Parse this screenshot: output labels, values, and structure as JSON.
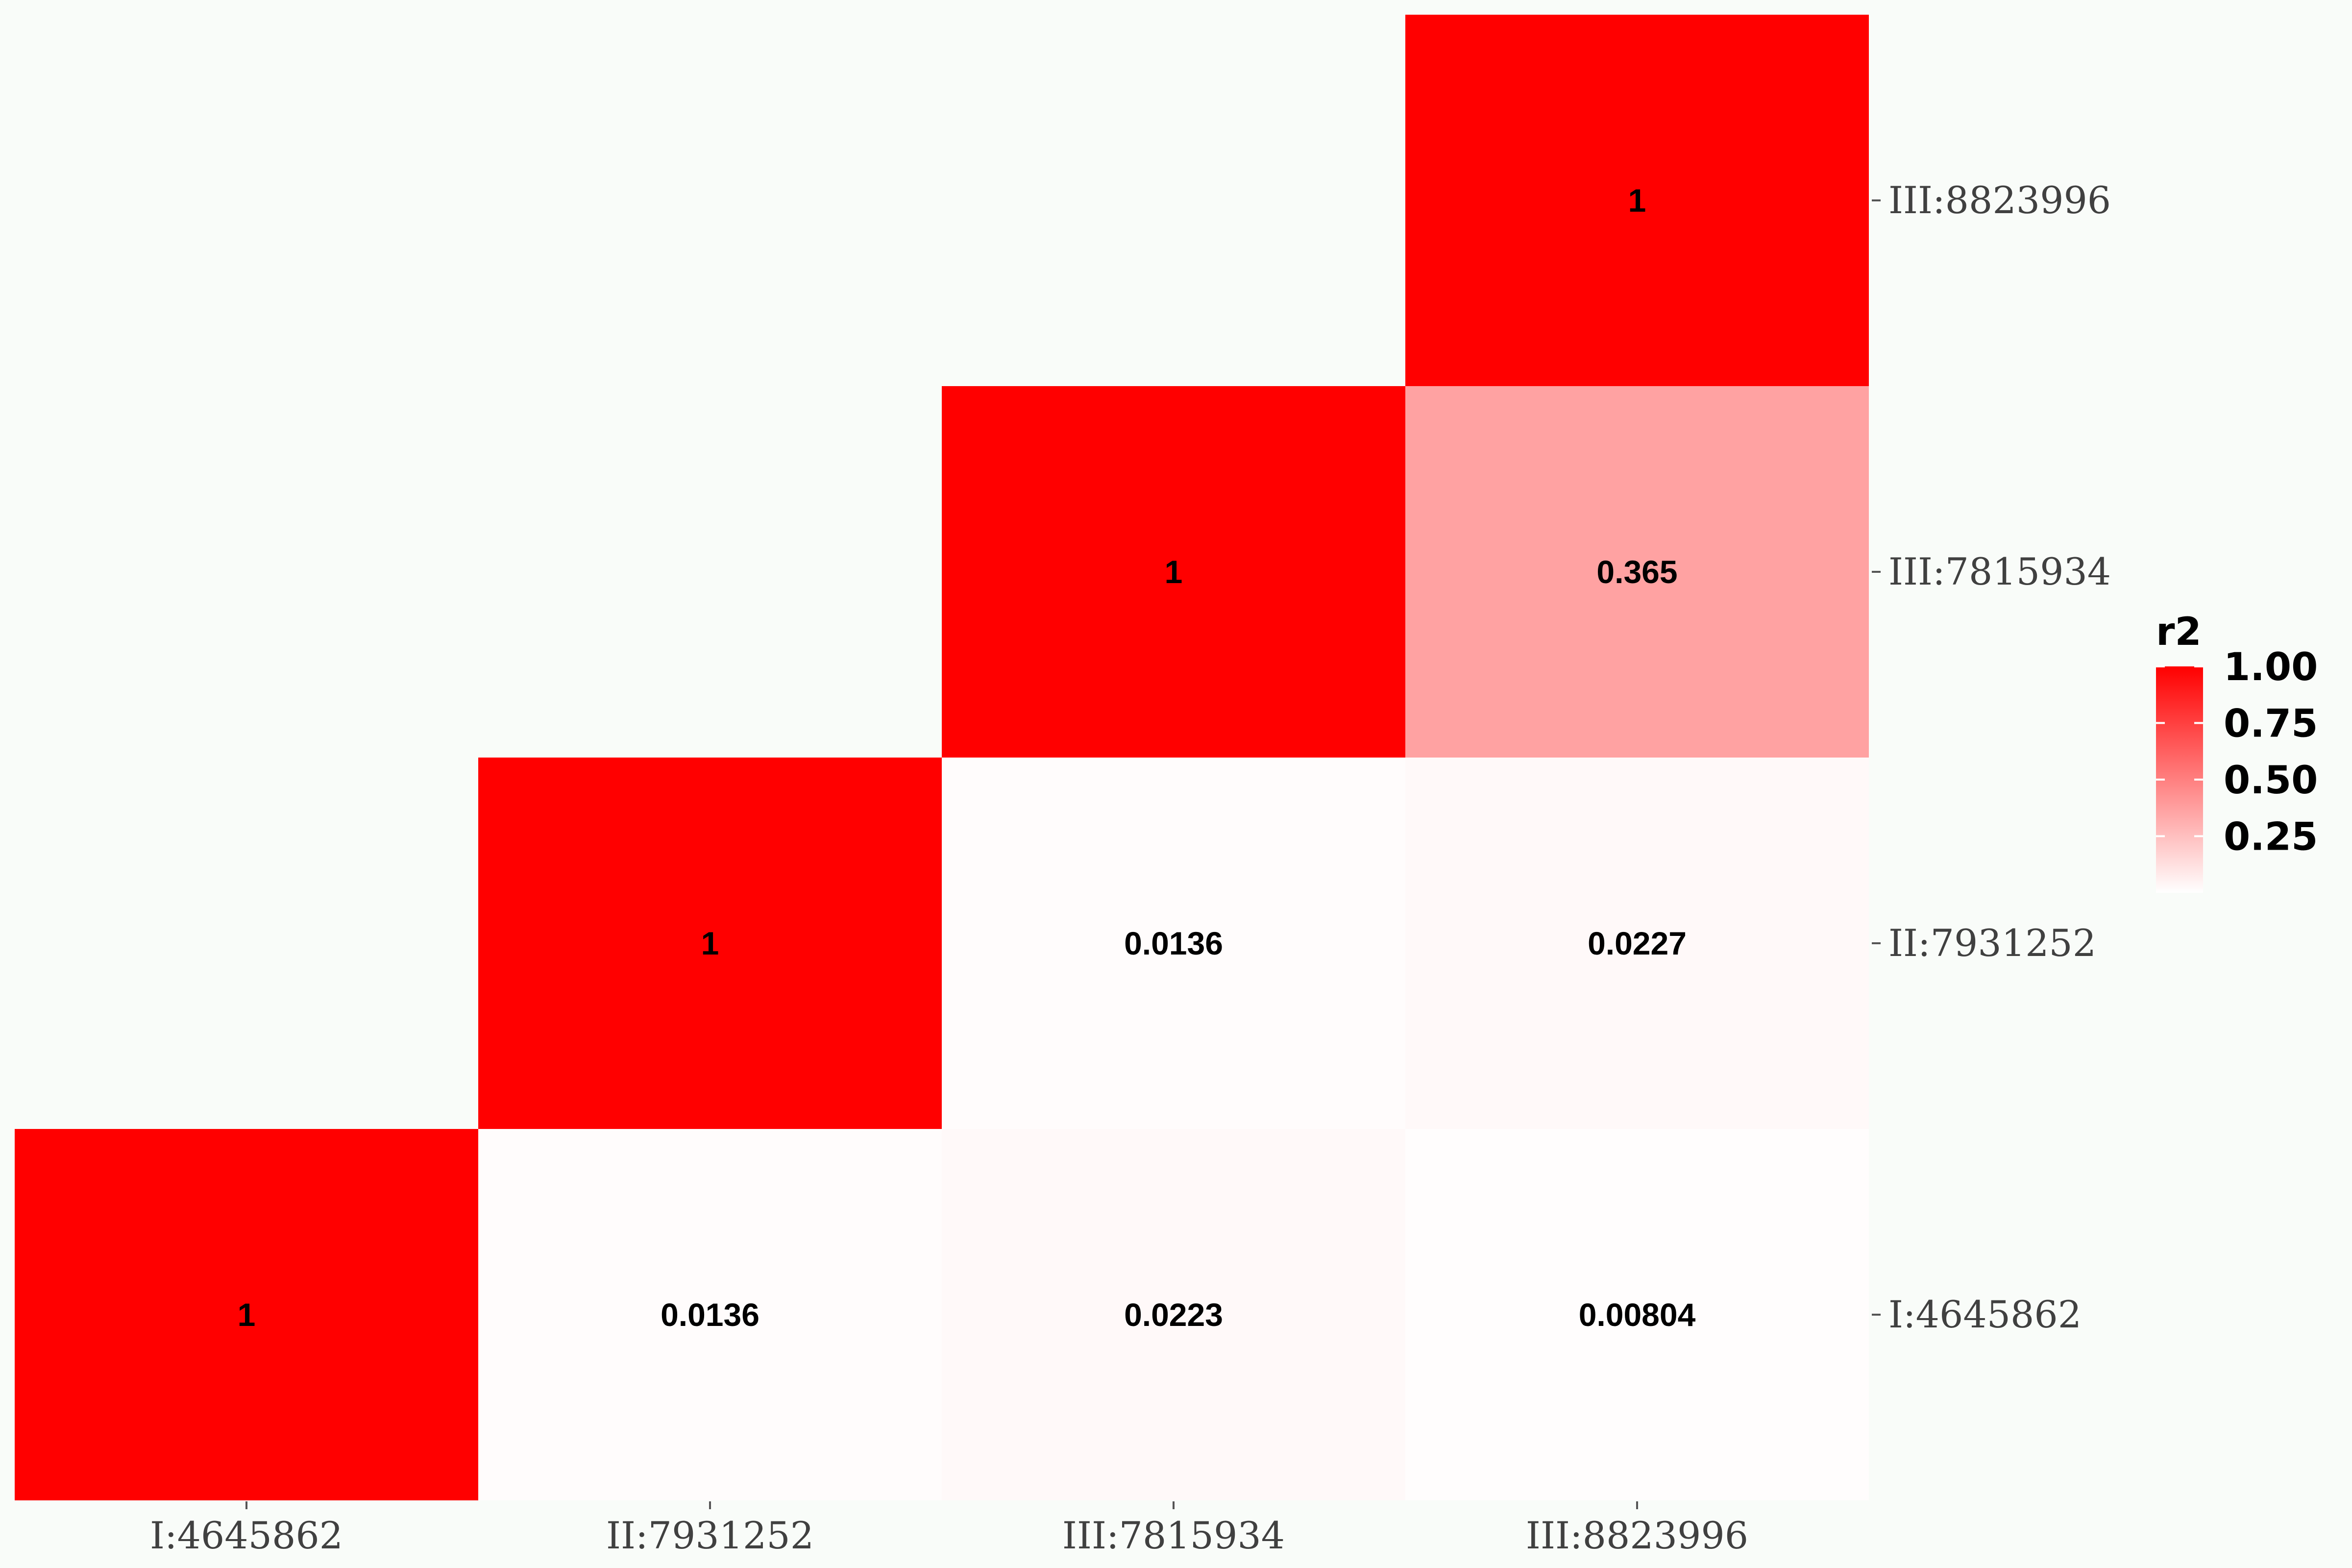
{
  "chart_data": {
    "type": "heatmap",
    "title": "",
    "xlabel": "",
    "ylabel": "",
    "x_categories": [
      "I:4645862",
      "II:7931252",
      "III:7815934",
      "III:8823996"
    ],
    "y_categories": [
      "I:4645862",
      "II:7931252",
      "III:7815934",
      "III:8823996"
    ],
    "cells": [
      {
        "x": "I:4645862",
        "y": "I:4645862",
        "value": 1,
        "label": "1"
      },
      {
        "x": "II:7931252",
        "y": "I:4645862",
        "value": 0.0136,
        "label": "0.0136"
      },
      {
        "x": "III:7815934",
        "y": "I:4645862",
        "value": 0.0223,
        "label": "0.0223"
      },
      {
        "x": "III:8823996",
        "y": "I:4645862",
        "value": 0.00804,
        "label": "0.00804"
      },
      {
        "x": "II:7931252",
        "y": "II:7931252",
        "value": 1,
        "label": "1"
      },
      {
        "x": "III:7815934",
        "y": "II:7931252",
        "value": 0.0136,
        "label": "0.0136"
      },
      {
        "x": "III:8823996",
        "y": "II:7931252",
        "value": 0.0227,
        "label": "0.0227"
      },
      {
        "x": "III:7815934",
        "y": "III:7815934",
        "value": 1,
        "label": "1"
      },
      {
        "x": "III:8823996",
        "y": "III:7815934",
        "value": 0.365,
        "label": "0.365"
      },
      {
        "x": "III:8823996",
        "y": "III:8823996",
        "value": 1,
        "label": "1"
      }
    ],
    "legend": {
      "title": "r2",
      "ticks": [
        "1.00",
        "0.75",
        "0.50",
        "0.25"
      ],
      "tick_values": [
        1.0,
        0.75,
        0.5,
        0.25
      ],
      "range": [
        0,
        1
      ],
      "low_color": "#ffffff",
      "high_color": "#ff0000",
      "placement": "right"
    },
    "grid": false
  }
}
